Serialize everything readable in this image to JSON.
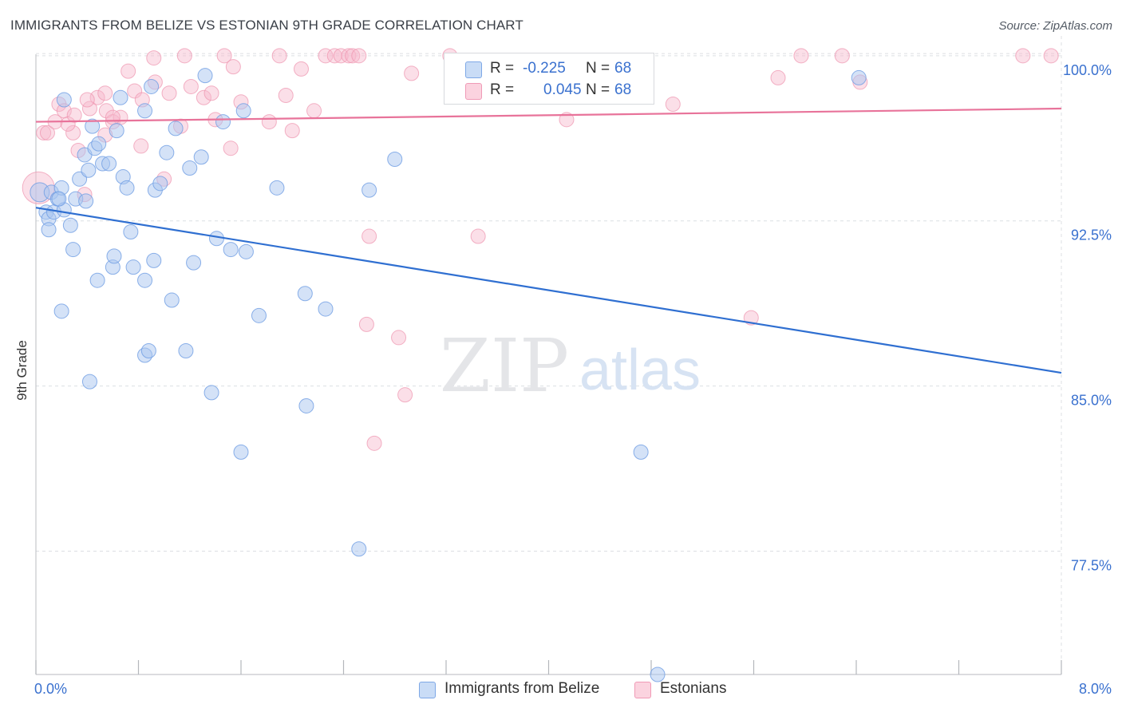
{
  "header": {
    "title": "IMMIGRANTS FROM BELIZE VS ESTONIAN 9TH GRADE CORRELATION CHART",
    "source": "Source: ZipAtlas.com"
  },
  "watermark": {
    "zip": "ZIP",
    "atlas": "atlas"
  },
  "stats_legend": {
    "rows": [
      {
        "r_label": "R =",
        "r_value": "-0.225",
        "n_label": "N =",
        "n_value": "68",
        "color": "#a9c6f0"
      },
      {
        "r_label": "R =",
        "r_value": "0.045",
        "n_label": "N =",
        "n_value": "68",
        "color": "#f6b8cb"
      }
    ]
  },
  "bottom_legend": {
    "items": [
      {
        "label": "Immigrants from Belize",
        "color": "#a9c6f0"
      },
      {
        "label": "Estonians",
        "color": "#f6b8cb"
      }
    ]
  },
  "chart_data": {
    "type": "scatter",
    "title": "IMMIGRANTS FROM BELIZE VS ESTONIAN 9TH GRADE CORRELATION CHART",
    "xlabel": "",
    "ylabel": "9th Grade",
    "xlim": [
      0,
      8
    ],
    "ylim": [
      71.9,
      100.9
    ],
    "x_tick_labels": [
      "0.0%",
      "8.0%"
    ],
    "y_ticks": [
      100,
      92.5,
      85,
      77.5
    ],
    "y_tick_labels": [
      "100.0%",
      "92.5%",
      "85.0%",
      "77.5%"
    ],
    "grid": true,
    "legend": "top-center",
    "colors": {
      "belize_point": "#a9c6f0",
      "belize_edge": "#6f9de3",
      "belize_line": "#2f6fd1",
      "estonian_point": "#f6b8cb",
      "estonian_edge": "#ee93ae",
      "estonian_line": "#e8739a",
      "tick_label": "#3a71cf",
      "grid": "#dcdfe3"
    },
    "series": [
      {
        "name": "Immigrants from Belize",
        "trend": {
          "x": [
            0,
            8
          ],
          "y": [
            93.1,
            85.6
          ]
        },
        "points": [
          [
            0.03,
            93.8
          ],
          [
            0.08,
            92.9
          ],
          [
            0.1,
            92.6
          ],
          [
            0.1,
            92.1
          ],
          [
            0.12,
            93.8
          ],
          [
            0.14,
            92.9
          ],
          [
            0.17,
            93.5
          ],
          [
            0.2,
            94.0
          ],
          [
            0.22,
            93.0
          ],
          [
            0.22,
            98.0
          ],
          [
            0.27,
            92.3
          ],
          [
            0.29,
            91.2
          ],
          [
            0.31,
            93.5
          ],
          [
            0.34,
            94.4
          ],
          [
            0.38,
            95.5
          ],
          [
            0.39,
            93.4
          ],
          [
            0.41,
            94.8
          ],
          [
            0.44,
            96.8
          ],
          [
            0.46,
            95.8
          ],
          [
            0.49,
            96.0
          ],
          [
            0.52,
            95.1
          ],
          [
            0.57,
            95.1
          ],
          [
            0.6,
            90.4
          ],
          [
            0.61,
            90.9
          ],
          [
            0.63,
            96.6
          ],
          [
            0.66,
            98.1
          ],
          [
            0.68,
            94.5
          ],
          [
            0.71,
            94.0
          ],
          [
            0.74,
            92.0
          ],
          [
            0.76,
            90.4
          ],
          [
            0.85,
            97.5
          ],
          [
            0.85,
            86.4
          ],
          [
            0.88,
            86.6
          ],
          [
            0.92,
            90.7
          ],
          [
            0.93,
            93.9
          ],
          [
            0.97,
            94.2
          ],
          [
            1.02,
            95.6
          ],
          [
            1.06,
            88.9
          ],
          [
            1.09,
            96.7
          ],
          [
            1.17,
            86.6
          ],
          [
            1.2,
            94.9
          ],
          [
            1.29,
            95.4
          ],
          [
            1.32,
            99.1
          ],
          [
            1.37,
            84.7
          ],
          [
            1.41,
            91.7
          ],
          [
            1.46,
            97.0
          ],
          [
            1.52,
            91.2
          ],
          [
            1.62,
            97.5
          ],
          [
            1.64,
            91.1
          ],
          [
            1.74,
            88.2
          ],
          [
            1.88,
            94.0
          ],
          [
            2.11,
            84.1
          ],
          [
            2.26,
            88.5
          ],
          [
            2.52,
            77.6
          ],
          [
            2.6,
            93.9
          ],
          [
            2.8,
            95.3
          ],
          [
            4.72,
            82.0
          ],
          [
            4.85,
            71.9
          ],
          [
            6.42,
            99.0
          ],
          [
            0.18,
            93.5
          ],
          [
            0.48,
            89.8
          ],
          [
            0.85,
            89.8
          ],
          [
            0.42,
            85.2
          ],
          [
            0.2,
            88.4
          ],
          [
            2.1,
            89.2
          ],
          [
            0.9,
            98.6
          ],
          [
            1.23,
            90.6
          ],
          [
            1.6,
            82.0
          ]
        ]
      },
      {
        "name": "Estonians",
        "trend": {
          "x": [
            0,
            8
          ],
          "y": [
            97.0,
            97.6
          ]
        },
        "points": [
          [
            0.02,
            94.0
          ],
          [
            0.06,
            96.5
          ],
          [
            0.09,
            96.5
          ],
          [
            0.15,
            97.0
          ],
          [
            0.18,
            97.8
          ],
          [
            0.22,
            97.5
          ],
          [
            0.29,
            96.5
          ],
          [
            0.33,
            95.7
          ],
          [
            0.38,
            93.7
          ],
          [
            0.42,
            97.6
          ],
          [
            0.48,
            98.1
          ],
          [
            0.54,
            98.3
          ],
          [
            0.55,
            97.5
          ],
          [
            0.6,
            97.0
          ],
          [
            0.66,
            97.2
          ],
          [
            0.72,
            99.3
          ],
          [
            0.77,
            98.4
          ],
          [
            0.82,
            95.9
          ],
          [
            0.83,
            98.0
          ],
          [
            0.92,
            99.9
          ],
          [
            0.93,
            98.8
          ],
          [
            1.0,
            94.4
          ],
          [
            1.04,
            98.3
          ],
          [
            1.13,
            96.8
          ],
          [
            1.16,
            100.0
          ],
          [
            1.21,
            98.6
          ],
          [
            1.31,
            98.1
          ],
          [
            1.37,
            98.3
          ],
          [
            1.4,
            97.1
          ],
          [
            1.47,
            100.0
          ],
          [
            1.52,
            95.8
          ],
          [
            1.54,
            99.5
          ],
          [
            1.6,
            97.9
          ],
          [
            1.82,
            97.0
          ],
          [
            1.9,
            100.0
          ],
          [
            1.95,
            98.2
          ],
          [
            2.0,
            96.6
          ],
          [
            2.07,
            99.4
          ],
          [
            2.17,
            97.5
          ],
          [
            2.26,
            100.0
          ],
          [
            2.33,
            100.0
          ],
          [
            2.38,
            100.0
          ],
          [
            2.44,
            100.0
          ],
          [
            2.47,
            100.0
          ],
          [
            2.52,
            100.0
          ],
          [
            2.58,
            87.8
          ],
          [
            2.6,
            91.8
          ],
          [
            2.83,
            87.2
          ],
          [
            2.88,
            84.6
          ],
          [
            2.93,
            99.2
          ],
          [
            3.23,
            100.0
          ],
          [
            3.45,
            91.8
          ],
          [
            3.78,
            99.5
          ],
          [
            4.14,
            97.1
          ],
          [
            4.97,
            97.8
          ],
          [
            5.58,
            88.1
          ],
          [
            5.79,
            99.0
          ],
          [
            5.97,
            100.0
          ],
          [
            6.29,
            100.0
          ],
          [
            6.43,
            98.8
          ],
          [
            7.7,
            100.0
          ],
          [
            7.92,
            100.0
          ],
          [
            2.64,
            82.4
          ],
          [
            0.6,
            97.2
          ],
          [
            0.25,
            96.9
          ],
          [
            0.4,
            98.0
          ],
          [
            0.3,
            97.3
          ],
          [
            0.54,
            96.4
          ]
        ]
      }
    ]
  }
}
